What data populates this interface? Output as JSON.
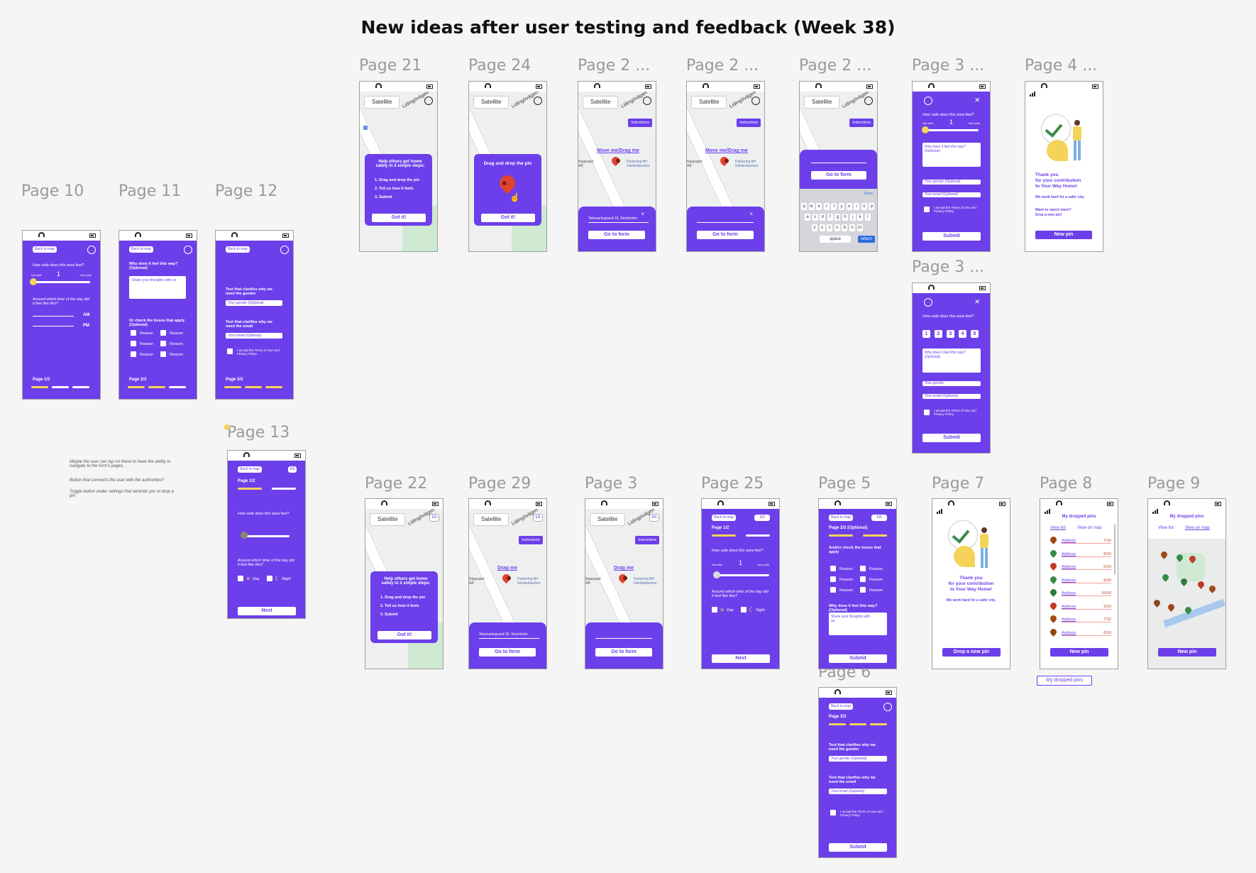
{
  "title": "New ideas after user testing and feedback (Week 38)",
  "labels": {
    "p10": "Page 10",
    "p11": "Page 11",
    "p12": "Page 12",
    "p13": "Page 13",
    "p21": "Page 21",
    "p24": "Page 24",
    "p2a": "Page 2 ...",
    "p2b": "Page 2 ...",
    "p2c": "Page 2 ...",
    "p3a": "Page 3 ...",
    "p4": "Page 4 ...",
    "p3b": "Page 3 ...",
    "p22": "Page 22",
    "p29": "Page 29",
    "p3": "Page 3",
    "p25": "Page 25",
    "p5": "Page 5",
    "p7": "Page 7",
    "p8": "Page 8",
    "p9": "Page 9",
    "p6": "Page 6"
  },
  "common": {
    "back_to_map": "Back to map",
    "satellite": "Satellite",
    "road_name": "Lidingövägen",
    "instructions": "Instructions",
    "lang": "EN",
    "submit": "Submit",
    "next": "Next",
    "go_to_form": "Go to form",
    "got_it": "Got it!",
    "how_safe": "How safe does this area feel?",
    "not_safe": "Not safe",
    "very_safe": "Very safe",
    "rating": "1",
    "around_time": "Around which time of the day did it feel like this?",
    "am": "AM",
    "pm": "PM",
    "why_feel": "Why does it feel this way? (Optional)",
    "share_thoughts": "Share your thoughts with us",
    "or_check": "Or check the boxes that apply (Optional)",
    "reason": "Reason",
    "gender_text": "Text that clarifies why we need the gender",
    "gender_select": "Your gender (Optional)",
    "email_text": "Text that clarifies why we need the email",
    "email_field": "Your email (Optional)",
    "terms": "I accept the Terms of Use and Privacy Policy",
    "page_1_3": "Page 1/3",
    "page_2_3": "Page 2/3",
    "page_3_3": "Page 3/3",
    "page_1_2": "Page 1/2",
    "page_2_2": "Page 2/2 (Optional)",
    "day": "Day",
    "night": "Night",
    "address": "Telemarksgrand 16, Stockholm",
    "move_drag": "Move me/Drag me",
    "drag_me": "Drag me",
    "parking": "Parkering Brf Gärdesbacken",
    "napp": "Nappapet AB",
    "gardes": "Gärdesbagen",
    "and_or_check": "And/or check the boxes that apply",
    "your_gender": "Your gender",
    "your_email": "Your email (Optional)"
  },
  "onboarding": {
    "heading": "Help others get home safely in 3 simple steps:",
    "step1": "1. Drag and drop the pin",
    "step2": "2. Tell us how it feels",
    "step3": "3. Submit",
    "drag_drop": "Drag and drop the pin"
  },
  "thanks": {
    "line1": "Thank you",
    "line2": "for your contribution",
    "line3": "to Your Way Home!",
    "work_hard": "We work hard for a safer city.",
    "want_report": "Want to report more?",
    "drop_new": "Drop a new pin!",
    "new_pin": "New pin",
    "drop_new_btn": "Drop a new pin"
  },
  "pins": {
    "title": "My dropped pins",
    "view_list": "View list",
    "view_map": "View on map",
    "rows": [
      {
        "addr": "Address",
        "score": "7/10",
        "color": "#a04a1a"
      },
      {
        "addr": "Address",
        "score": "8/10",
        "color": "#3a8a4a"
      },
      {
        "addr": "Address",
        "score": "5/10",
        "color": "#c0392b"
      },
      {
        "addr": "Address",
        "score": "9/10",
        "color": "#3a8a4a"
      },
      {
        "addr": "Address",
        "score": "10/10",
        "color": "#2e7a3e"
      },
      {
        "addr": "Address",
        "score": "3/10",
        "color": "#c0392b"
      },
      {
        "addr": "Address",
        "score": "7/10",
        "color": "#a04a1a"
      },
      {
        "addr": "Address",
        "score": "6/10",
        "color": "#8a4a1a"
      }
    ],
    "my_pins_btn": "My dropped pins"
  },
  "numbers": [
    "1",
    "2",
    "3",
    "4",
    "5"
  ],
  "notes": {
    "n1": "Maybe the user can tap on these to have the ability to navigate to the form's pages.",
    "n2": "Button that connects the user with the authorities?",
    "n3": "Toggle button under settings that reminds you to drop a pin"
  },
  "keyboard": {
    "row1": [
      "q",
      "w",
      "e",
      "r",
      "t",
      "y",
      "u",
      "i",
      "o",
      "p"
    ],
    "row2": [
      "a",
      "s",
      "d",
      "f",
      "g",
      "h",
      "j",
      "k",
      "l"
    ],
    "row3": [
      "z",
      "x",
      "c",
      "v",
      "b",
      "n",
      "m"
    ],
    "space": "space",
    "done": "Done",
    "ret": "return"
  },
  "colors": {
    "purple": "#6c3fea",
    "yellow": "#f5d35a",
    "white": "#ffffff"
  }
}
